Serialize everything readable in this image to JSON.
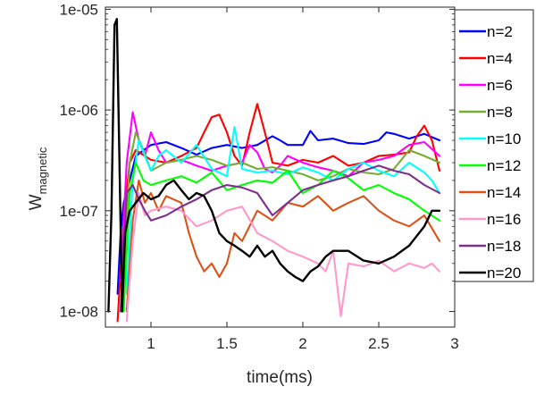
{
  "chart_data": {
    "type": "line",
    "xlabel": "time(ms)",
    "ylabel": "W",
    "ylabel_subscript": "magnetic",
    "xlim": [
      0.7,
      3.0
    ],
    "ylim": [
      7e-09,
      1.05e-05
    ],
    "y_scale": "log",
    "x_ticks": [
      1,
      1.5,
      2,
      2.5,
      3
    ],
    "x_tick_labels": [
      "1",
      "1.5",
      "2",
      "2.5",
      "3"
    ],
    "y_ticks": [
      1e-08,
      1e-07,
      1e-06,
      1e-05
    ],
    "y_tick_labels": [
      "1e-08",
      "1e-07",
      "1e-06",
      "1e-05"
    ],
    "grid": false,
    "legend_position": "outside-right",
    "series": [
      {
        "name": "n=2",
        "color": "#0000ff",
        "x": [
          0.78,
          0.8,
          0.82,
          0.86,
          0.9,
          1.0,
          1.1,
          1.2,
          1.3,
          1.4,
          1.5,
          1.6,
          1.7,
          1.8,
          1.85,
          1.9,
          2.0,
          2.05,
          2.1,
          2.2,
          2.3,
          2.4,
          2.5,
          2.55,
          2.6,
          2.7,
          2.8,
          2.9
        ],
        "y": [
          1.5e-08,
          6e-08,
          1.2e-07,
          2e-07,
          3.5e-07,
          4.5e-07,
          4.8e-07,
          4.2e-07,
          3.6e-07,
          4.2e-07,
          4.5e-07,
          4.2e-07,
          4.5e-07,
          5.5e-07,
          5e-07,
          4.5e-07,
          4.5e-07,
          6.2e-07,
          5e-07,
          5.2e-07,
          4.7e-07,
          4.6e-07,
          5e-07,
          6e-07,
          5.8e-07,
          5.2e-07,
          5.8e-07,
          5e-07
        ]
      },
      {
        "name": "n=4",
        "color": "#ff0000",
        "x": [
          0.78,
          0.82,
          0.86,
          0.9,
          1.0,
          1.1,
          1.2,
          1.3,
          1.35,
          1.4,
          1.45,
          1.5,
          1.55,
          1.6,
          1.65,
          1.7,
          1.75,
          1.8,
          1.9,
          2.0,
          2.1,
          2.2,
          2.3,
          2.4,
          2.5,
          2.6,
          2.7,
          2.75,
          2.8,
          2.85,
          2.9
        ],
        "y": [
          8e-09,
          8e-08,
          3e-07,
          4e-07,
          3.2e-07,
          3e-07,
          3.5e-07,
          4.2e-07,
          6e-07,
          8.5e-07,
          9e-07,
          6e-07,
          3.5e-07,
          2.8e-07,
          6e-07,
          1.15e-06,
          6e-07,
          3e-07,
          2.8e-07,
          3.2e-07,
          3e-07,
          3.5e-07,
          2.8e-07,
          3e-07,
          3.5e-07,
          3.6e-07,
          3.8e-07,
          5.5e-07,
          7e-07,
          5e-07,
          2.5e-07
        ]
      },
      {
        "name": "n=6",
        "color": "#ff00ff",
        "x": [
          0.8,
          0.84,
          0.88,
          0.92,
          0.96,
          1.0,
          1.05,
          1.1,
          1.2,
          1.3,
          1.4,
          1.5,
          1.6,
          1.65,
          1.7,
          1.75,
          1.8,
          1.85,
          1.9,
          2.0,
          2.1,
          2.2,
          2.3,
          2.4,
          2.5,
          2.6,
          2.7,
          2.8,
          2.9
        ],
        "y": [
          2e-08,
          3e-07,
          9.5e-07,
          5e-07,
          3.5e-07,
          6e-07,
          4e-07,
          3e-07,
          3.2e-07,
          2.8e-07,
          2.5e-07,
          2.8e-07,
          3e-07,
          4.5e-07,
          3.8e-07,
          2.6e-07,
          2.4e-07,
          2.8e-07,
          3.5e-07,
          3e-07,
          2.7e-07,
          2.5e-07,
          2.2e-07,
          3e-07,
          3.2e-07,
          3.5e-07,
          4.5e-07,
          4.8e-07,
          3.5e-07
        ]
      },
      {
        "name": "n=8",
        "color": "#77ac30",
        "x": [
          0.82,
          0.86,
          0.9,
          0.95,
          1.0,
          1.1,
          1.2,
          1.3,
          1.4,
          1.5,
          1.6,
          1.7,
          1.8,
          1.9,
          2.0,
          2.1,
          2.2,
          2.3,
          2.4,
          2.5,
          2.6,
          2.7,
          2.8,
          2.9
        ],
        "y": [
          2e-08,
          3e-07,
          6e-07,
          4e-07,
          2.5e-07,
          3e-07,
          3.2e-07,
          3.5e-07,
          3.2e-07,
          2.8e-07,
          3e-07,
          2.6e-07,
          2.7e-07,
          2.5e-07,
          2.3e-07,
          2e-07,
          2.2e-07,
          2.6e-07,
          2.4e-07,
          2.3e-07,
          2.6e-07,
          4e-07,
          3.5e-07,
          3e-07
        ]
      },
      {
        "name": "n=10",
        "color": "#00ffff",
        "x": [
          0.84,
          0.88,
          0.92,
          0.96,
          1.0,
          1.05,
          1.1,
          1.2,
          1.3,
          1.4,
          1.5,
          1.55,
          1.6,
          1.7,
          1.8,
          1.9,
          2.0,
          2.1,
          2.2,
          2.3,
          2.4,
          2.5,
          2.6,
          2.7,
          2.8,
          2.85,
          2.9
        ],
        "y": [
          1.5e-08,
          2e-07,
          5e-07,
          3.5e-07,
          2.5e-07,
          3.5e-07,
          4e-07,
          3e-07,
          4.5e-07,
          2.6e-07,
          2.2e-07,
          6.8e-07,
          2.6e-07,
          2.4e-07,
          2.5e-07,
          2.3e-07,
          2.7e-07,
          2.4e-07,
          2e-07,
          2.6e-07,
          3e-07,
          2.5e-07,
          2.2e-07,
          3e-07,
          2.4e-07,
          2e-07,
          1.5e-07
        ]
      },
      {
        "name": "n=12",
        "color": "#00ff00",
        "x": [
          0.82,
          0.86,
          0.9,
          0.95,
          1.0,
          1.1,
          1.2,
          1.3,
          1.4,
          1.5,
          1.6,
          1.7,
          1.8,
          1.9,
          2.0,
          2.1,
          2.2,
          2.3,
          2.4,
          2.5,
          2.6,
          2.7,
          2.8,
          2.9
        ],
        "y": [
          1e-08,
          1.5e-07,
          3e-07,
          2e-07,
          1.8e-07,
          2e-07,
          2.2e-07,
          1.9e-07,
          2.4e-07,
          1.6e-07,
          1.8e-07,
          2e-07,
          1.9e-07,
          2.5e-07,
          1.5e-07,
          1.8e-07,
          2.5e-07,
          2.1e-07,
          1.6e-07,
          1.8e-07,
          1.5e-07,
          1.3e-07,
          1e-07,
          8e-08
        ]
      },
      {
        "name": "n=14",
        "color": "#d95319",
        "x": [
          0.84,
          0.88,
          0.92,
          0.96,
          1.0,
          1.05,
          1.1,
          1.2,
          1.25,
          1.3,
          1.35,
          1.4,
          1.45,
          1.5,
          1.55,
          1.6,
          1.7,
          1.8,
          1.9,
          2.0,
          2.1,
          2.2,
          2.3,
          2.4,
          2.5,
          2.6,
          2.7,
          2.8,
          2.9
        ],
        "y": [
          1e-08,
          8e-08,
          2e-07,
          1.2e-07,
          1.5e-07,
          1e-07,
          1.4e-07,
          1.2e-07,
          6e-08,
          3.5e-08,
          2.5e-08,
          3e-08,
          2.2e-08,
          3e-08,
          6e-08,
          5e-08,
          1e-07,
          8e-08,
          1.2e-07,
          1.1e-07,
          1.4e-07,
          1e-07,
          1.2e-07,
          1.4e-07,
          1e-07,
          8e-08,
          7e-08,
          9e-08,
          5e-08
        ]
      },
      {
        "name": "n=16",
        "color": "#ff99cc",
        "x": [
          0.84,
          0.88,
          0.92,
          0.96,
          1.0,
          1.1,
          1.2,
          1.3,
          1.4,
          1.5,
          1.6,
          1.7,
          1.8,
          1.9,
          2.0,
          2.1,
          2.15,
          2.2,
          2.25,
          2.3,
          2.4,
          2.5,
          2.6,
          2.7,
          2.8,
          2.85,
          2.9
        ],
        "y": [
          8e-09,
          5e-08,
          1.5e-07,
          9e-08,
          1e-07,
          1.1e-07,
          1e-07,
          7e-08,
          8e-08,
          1e-07,
          1.1e-07,
          6e-08,
          5e-08,
          4e-08,
          3.5e-08,
          3e-08,
          2.5e-08,
          4e-08,
          9e-09,
          3e-08,
          2.8e-08,
          3.2e-08,
          2.5e-08,
          3e-08,
          2.7e-08,
          3e-08,
          2.5e-08
        ]
      },
      {
        "name": "n=18",
        "color": "#7e2f8e",
        "x": [
          0.8,
          0.84,
          0.88,
          0.92,
          0.96,
          1.0,
          1.1,
          1.2,
          1.3,
          1.4,
          1.5,
          1.6,
          1.7,
          1.8,
          1.9,
          2.0,
          2.1,
          2.2,
          2.3,
          2.4,
          2.5,
          2.6,
          2.7,
          2.8,
          2.9
        ],
        "y": [
          1e-08,
          1.5e-07,
          1.8e-07,
          1.3e-07,
          1e-07,
          8e-08,
          9e-08,
          1.1e-07,
          1.3e-07,
          1.6e-07,
          1.8e-07,
          1.7e-07,
          1.5e-07,
          9e-08,
          1.2e-07,
          1.6e-07,
          1.8e-07,
          2e-07,
          2.2e-07,
          2.5e-07,
          2.8e-07,
          2.5e-07,
          2.3e-07,
          1.8e-07,
          1.5e-07
        ]
      },
      {
        "name": "n=20",
        "color": "#000000",
        "x": [
          0.72,
          0.74,
          0.76,
          0.775,
          0.79,
          0.81,
          0.83,
          0.86,
          0.9,
          0.95,
          1.0,
          1.05,
          1.1,
          1.15,
          1.2,
          1.25,
          1.3,
          1.35,
          1.4,
          1.45,
          1.5,
          1.55,
          1.6,
          1.65,
          1.7,
          1.75,
          1.8,
          1.85,
          1.9,
          1.95,
          2.0,
          2.05,
          2.1,
          2.15,
          2.2,
          2.3,
          2.4,
          2.5,
          2.6,
          2.7,
          2.8,
          2.85,
          2.9
        ],
        "y": [
          1e-08,
          1e-07,
          7e-06,
          8e-06,
          5e-07,
          1e-08,
          6e-08,
          1e-07,
          1.2e-07,
          1.5e-07,
          1.3e-07,
          1.4e-07,
          1.8e-07,
          2e-07,
          1.6e-07,
          1.3e-07,
          1.5e-07,
          1.4e-07,
          1e-07,
          6e-08,
          5e-08,
          4.5e-08,
          4e-08,
          3.5e-08,
          4.5e-08,
          3.5e-08,
          4e-08,
          3e-08,
          2.5e-08,
          2.2e-08,
          2e-08,
          2.5e-08,
          2.8e-08,
          3.5e-08,
          4e-08,
          4e-08,
          3.2e-08,
          3e-08,
          3.5e-08,
          4.5e-08,
          7e-08,
          1e-07,
          1e-07
        ]
      }
    ]
  }
}
